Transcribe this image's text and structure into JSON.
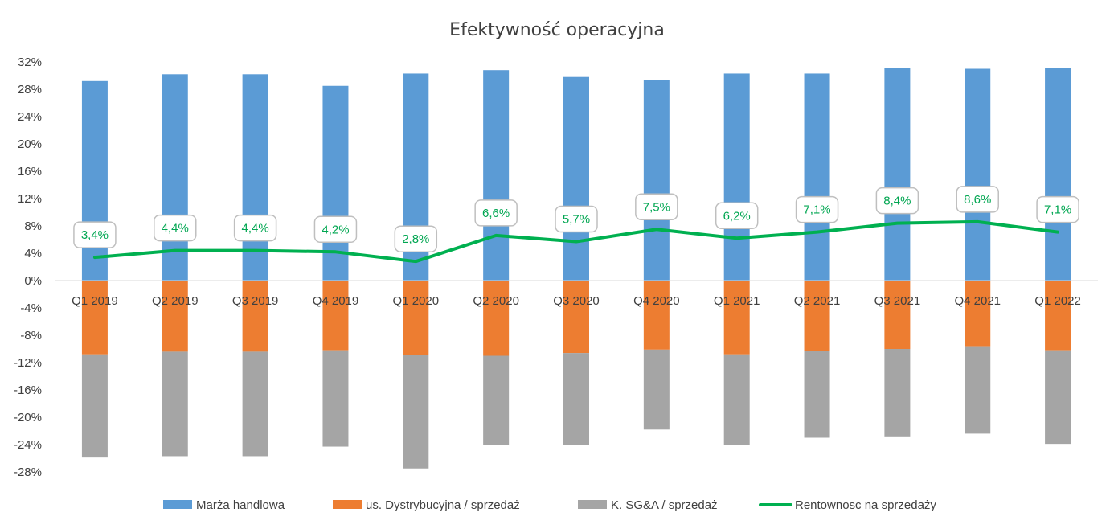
{
  "chart_data": {
    "type": "bar",
    "stacked": true,
    "title": "Efektywność operacyjna",
    "categories": [
      "Q1 2019",
      "Q2 2019",
      "Q3 2019",
      "Q4 2019",
      "Q1 2020",
      "Q2 2020",
      "Q3 2020",
      "Q4 2020",
      "Q1 2021",
      "Q2 2021",
      "Q3 2021",
      "Q4 2021",
      "Q1 2022"
    ],
    "ylim": [
      -28,
      32
    ],
    "yticks": [
      32,
      28,
      24,
      20,
      16,
      12,
      8,
      4,
      0,
      -4,
      -8,
      -12,
      -16,
      -20,
      -24,
      -28
    ],
    "ytick_labels": [
      "32%",
      "28%",
      "24%",
      "20%",
      "16%",
      "12%",
      "8%",
      "4%",
      "0%",
      "-4%",
      "-8%",
      "-12%",
      "-16%",
      "-20%",
      "-24%",
      "-28%"
    ],
    "grid": false,
    "legend_position": "bottom",
    "series": [
      {
        "name": "Marża handlowa",
        "kind": "bar",
        "color": "#5b9bd5",
        "values": [
          29.2,
          30.2,
          30.2,
          28.5,
          30.3,
          30.8,
          29.8,
          29.3,
          30.3,
          30.3,
          31.1,
          31.0,
          31.1
        ]
      },
      {
        "name": "us. Dystrybucyjna / sprzedaż",
        "kind": "bar",
        "color": "#ed7d31",
        "values": [
          -10.8,
          -10.4,
          -10.4,
          -10.2,
          -10.9,
          -11.0,
          -10.6,
          -10.1,
          -10.8,
          -10.3,
          -10.0,
          -9.6,
          -10.2
        ]
      },
      {
        "name": "K. SG&A / sprzedaż",
        "kind": "bar",
        "color": "#a5a5a5",
        "values": [
          -15.1,
          -15.3,
          -15.3,
          -14.1,
          -16.6,
          -13.1,
          -13.4,
          -11.7,
          -13.2,
          -12.7,
          -12.8,
          -12.8,
          -13.7
        ]
      },
      {
        "name": "Rentownosc na sprzedaży",
        "kind": "line",
        "color": "#00b050",
        "values": [
          3.4,
          4.4,
          4.4,
          4.2,
          2.8,
          6.6,
          5.7,
          7.5,
          6.2,
          7.1,
          8.4,
          8.6,
          7.1
        ],
        "labels": [
          "3,4%",
          "4,4%",
          "4,4%",
          "4,2%",
          "2,8%",
          "6,6%",
          "5,7%",
          "7,5%",
          "6,2%",
          "7,1%",
          "8,4%",
          "8,6%",
          "7,1%"
        ]
      }
    ]
  }
}
